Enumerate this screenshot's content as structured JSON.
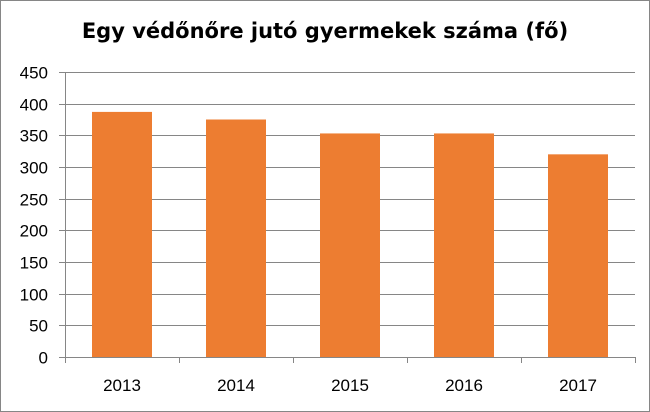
{
  "chart_data": {
    "type": "bar",
    "title": "Egy védőnőre jutó gyermekek száma (fő)",
    "categories": [
      "2013",
      "2014",
      "2015",
      "2016",
      "2017"
    ],
    "values": [
      387,
      375,
      353,
      353,
      320
    ],
    "ylim": [
      0,
      450
    ],
    "yticks": [
      0,
      50,
      100,
      150,
      200,
      250,
      300,
      350,
      400,
      450
    ],
    "grid": true,
    "legend": "none",
    "bar_color": "#ED7D31",
    "grid_color": "#868686"
  }
}
